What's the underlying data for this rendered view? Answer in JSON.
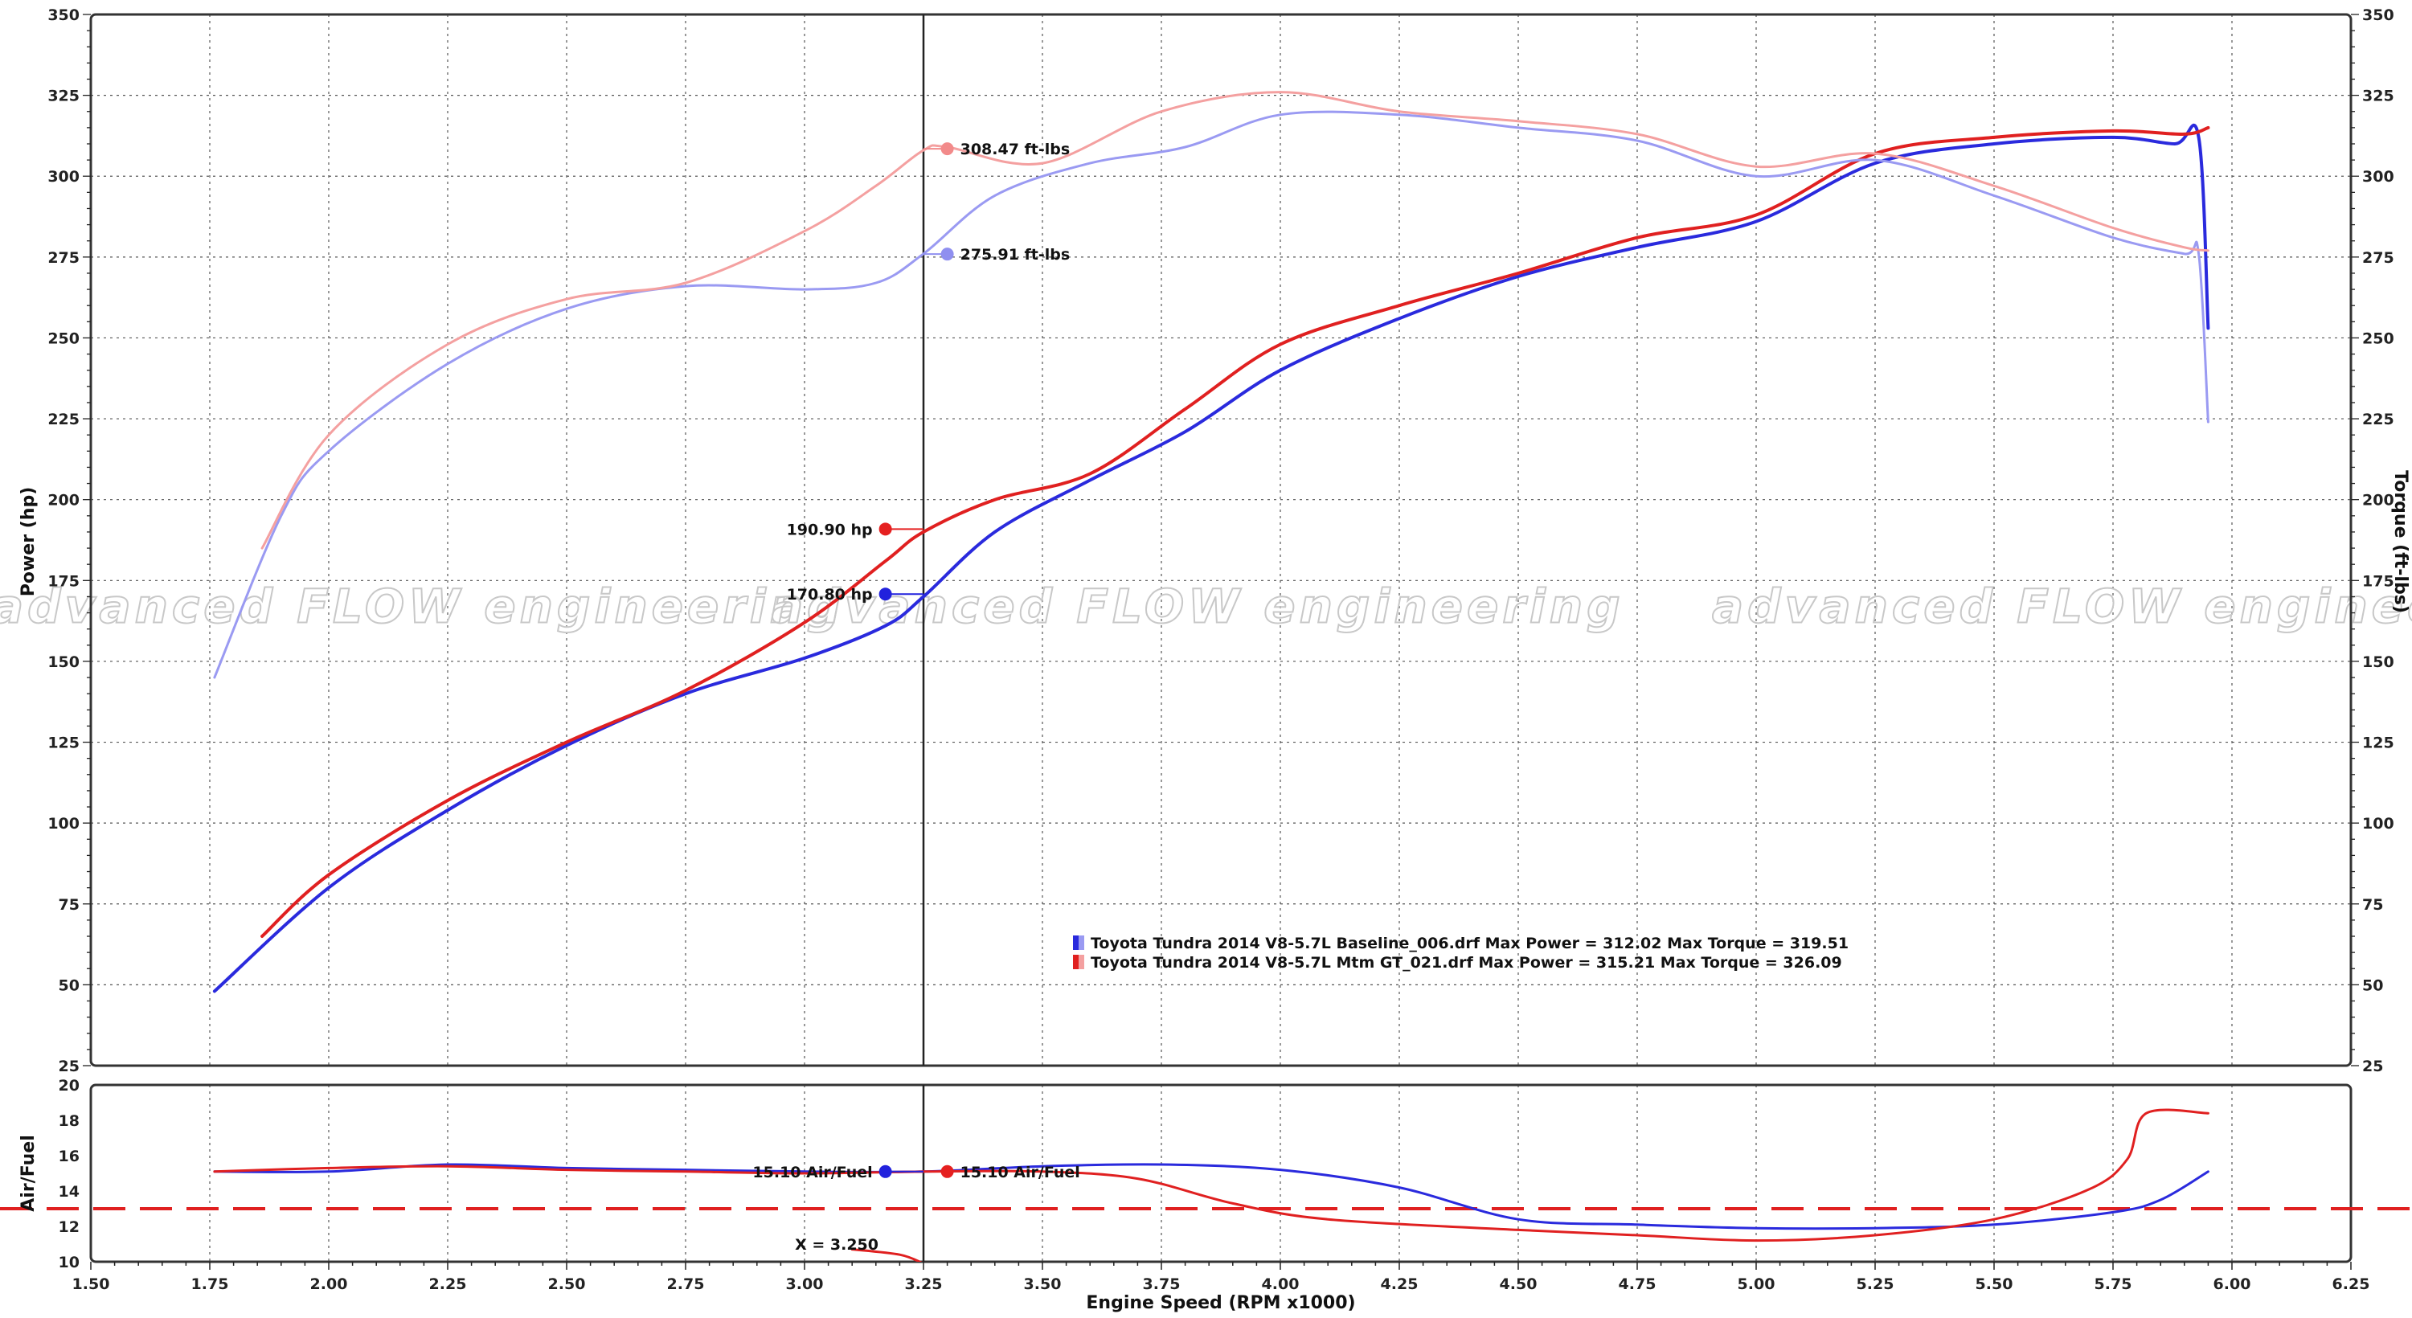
{
  "chart_data": [
    {
      "type": "line",
      "panel": "power-torque",
      "xlabel": "Engine Speed (RPM x1000)",
      "ylabel_left": "Power (hp)",
      "ylabel_right": "Torque (ft-lbs)",
      "xlim": [
        1.5,
        6.25
      ],
      "ylim_left": [
        25,
        350
      ],
      "ylim_right": [
        25,
        350
      ],
      "x_ticks": [
        "1.50",
        "1.75",
        "2.00",
        "2.25",
        "2.50",
        "2.75",
        "3.00",
        "3.25",
        "3.50",
        "3.75",
        "4.00",
        "4.25",
        "4.50",
        "4.75",
        "5.00",
        "5.25",
        "5.50",
        "5.75",
        "6.00",
        "6.25"
      ],
      "y_ticks": [
        "350",
        "325",
        "300",
        "275",
        "250",
        "225",
        "200",
        "175",
        "150",
        "125",
        "100",
        "75",
        "50",
        "25"
      ],
      "grid": true,
      "watermark": "advanced FLOW engineering",
      "cursor": {
        "x": 3.25
      },
      "series": [
        {
          "key": "baseline_power",
          "color": "#2a2add",
          "width": 4,
          "points": [
            [
              1.76,
              48
            ],
            [
              2.0,
              80
            ],
            [
              2.25,
              104
            ],
            [
              2.5,
              124
            ],
            [
              2.75,
              140
            ],
            [
              3.0,
              151
            ],
            [
              3.17,
              161
            ],
            [
              3.25,
              170
            ],
            [
              3.4,
              190
            ],
            [
              3.6,
              206
            ],
            [
              3.8,
              221
            ],
            [
              4.0,
              240
            ],
            [
              4.25,
              256
            ],
            [
              4.5,
              269
            ],
            [
              4.75,
              278
            ],
            [
              5.0,
              286
            ],
            [
              5.25,
              304
            ],
            [
              5.5,
              310
            ],
            [
              5.75,
              312
            ],
            [
              5.88,
              310
            ],
            [
              5.93,
              312
            ],
            [
              5.95,
              253
            ]
          ]
        },
        {
          "key": "mod_power",
          "color": "#e02020",
          "width": 4,
          "points": [
            [
              1.86,
              65
            ],
            [
              2.0,
              84
            ],
            [
              2.25,
              107
            ],
            [
              2.5,
              125
            ],
            [
              2.75,
              141
            ],
            [
              3.0,
              162
            ],
            [
              3.17,
              181
            ],
            [
              3.25,
              190
            ],
            [
              3.4,
              200
            ],
            [
              3.6,
              208
            ],
            [
              3.8,
              228
            ],
            [
              4.0,
              248
            ],
            [
              4.25,
              260
            ],
            [
              4.5,
              270
            ],
            [
              4.75,
              281
            ],
            [
              5.0,
              288
            ],
            [
              5.25,
              307
            ],
            [
              5.5,
              312
            ],
            [
              5.75,
              314
            ],
            [
              5.9,
              313
            ],
            [
              5.95,
              315
            ]
          ]
        },
        {
          "key": "baseline_torque",
          "color": "#9a9af2",
          "width": 3,
          "points": [
            [
              1.76,
              145
            ],
            [
              1.9,
              195
            ],
            [
              2.0,
              215
            ],
            [
              2.25,
              242
            ],
            [
              2.5,
              259
            ],
            [
              2.75,
              266
            ],
            [
              3.0,
              265
            ],
            [
              3.15,
              267
            ],
            [
              3.25,
              276
            ],
            [
              3.4,
              294
            ],
            [
              3.6,
              304
            ],
            [
              3.8,
              309
            ],
            [
              4.0,
              319
            ],
            [
              4.25,
              319
            ],
            [
              4.5,
              315
            ],
            [
              4.75,
              311
            ],
            [
              5.0,
              300
            ],
            [
              5.25,
              305
            ],
            [
              5.5,
              294
            ],
            [
              5.75,
              281
            ],
            [
              5.9,
              276
            ],
            [
              5.93,
              276
            ],
            [
              5.95,
              224
            ]
          ]
        },
        {
          "key": "mod_torque",
          "color": "#f4a0a0",
          "width": 3,
          "points": [
            [
              1.86,
              185
            ],
            [
              2.0,
              220
            ],
            [
              2.25,
              248
            ],
            [
              2.5,
              262
            ],
            [
              2.75,
              267
            ],
            [
              3.0,
              283
            ],
            [
              3.15,
              297
            ],
            [
              3.25,
              308
            ],
            [
              3.3,
              309
            ],
            [
              3.5,
              304
            ],
            [
              3.75,
              320
            ],
            [
              4.0,
              326
            ],
            [
              4.25,
              320
            ],
            [
              4.5,
              317
            ],
            [
              4.75,
              313
            ],
            [
              5.0,
              303
            ],
            [
              5.25,
              307
            ],
            [
              5.5,
              297
            ],
            [
              5.75,
              284
            ],
            [
              5.9,
              278
            ],
            [
              5.95,
              277
            ]
          ]
        }
      ],
      "annotations": [
        {
          "label": "308.47 ft-lbs",
          "x": 3.3,
          "y": 308.47,
          "color": "#f28a8a",
          "side": "right"
        },
        {
          "label": "275.91 ft-lbs",
          "x": 3.3,
          "y": 275.91,
          "color": "#8f8ff0",
          "side": "right"
        },
        {
          "label": "190.90 hp",
          "x": 3.17,
          "y": 190.9,
          "color": "#e52020",
          "side": "left"
        },
        {
          "label": "170.80 hp",
          "x": 3.17,
          "y": 170.8,
          "color": "#2222dd",
          "side": "left"
        }
      ],
      "legend": {
        "placement": "lower-center",
        "entries": [
          {
            "text": "Toyota Tundra 2014 V8-5.7L Baseline_006.drf Max Power = 312.02     Max Torque = 319.51",
            "colors": [
              "#2a2add",
              "#9a9af2"
            ]
          },
          {
            "text": "Toyota Tundra 2014 V8-5.7L Mtm GT_021.drf Max Power = 315.21     Max Torque = 326.09",
            "colors": [
              "#e02020",
              "#f4a0a0"
            ]
          }
        ]
      }
    },
    {
      "type": "line",
      "panel": "air-fuel",
      "xlabel": "Engine Speed (RPM x1000)",
      "ylabel": "Air/Fuel",
      "xlim": [
        1.5,
        6.25
      ],
      "ylim": [
        10,
        20
      ],
      "x_ticks": [
        "1.50",
        "1.75",
        "2.00",
        "2.25",
        "2.50",
        "2.75",
        "3.00",
        "3.25",
        "3.50",
        "3.75",
        "4.00",
        "4.25",
        "4.50",
        "4.75",
        "5.00",
        "5.25",
        "5.50",
        "5.75",
        "6.00",
        "6.25"
      ],
      "y_ticks": [
        "20",
        "18",
        "16",
        "14",
        "12",
        "10"
      ],
      "reference_line": {
        "y": 13,
        "color": "#e02020",
        "style": "dashed"
      },
      "cursor": {
        "x": 3.25
      },
      "series": [
        {
          "key": "baseline_af",
          "color": "#2a2add",
          "width": 3,
          "points": [
            [
              1.76,
              15.1
            ],
            [
              2.0,
              15.1
            ],
            [
              2.25,
              15.5
            ],
            [
              2.5,
              15.3
            ],
            [
              2.75,
              15.2
            ],
            [
              3.0,
              15.1
            ],
            [
              3.25,
              15.1
            ],
            [
              3.5,
              15.4
            ],
            [
              3.75,
              15.5
            ],
            [
              4.0,
              15.2
            ],
            [
              4.25,
              14.2
            ],
            [
              4.5,
              12.4
            ],
            [
              4.75,
              12.1
            ],
            [
              5.0,
              11.9
            ],
            [
              5.25,
              11.9
            ],
            [
              5.5,
              12.1
            ],
            [
              5.75,
              12.8
            ],
            [
              5.85,
              13.5
            ],
            [
              5.95,
              15.1
            ]
          ]
        },
        {
          "key": "mod_af",
          "color": "#e02020",
          "width": 3,
          "points": [
            [
              1.76,
              15.1
            ],
            [
              2.0,
              15.3
            ],
            [
              2.25,
              15.4
            ],
            [
              2.5,
              15.2
            ],
            [
              2.75,
              15.1
            ],
            [
              3.0,
              15.0
            ],
            [
              3.25,
              15.1
            ],
            [
              3.5,
              15.1
            ],
            [
              3.7,
              14.7
            ],
            [
              3.9,
              13.3
            ],
            [
              4.1,
              12.4
            ],
            [
              4.5,
              11.8
            ],
            [
              4.75,
              11.5
            ],
            [
              5.0,
              11.2
            ],
            [
              5.25,
              11.5
            ],
            [
              5.5,
              12.4
            ],
            [
              5.7,
              14.1
            ],
            [
              5.78,
              15.8
            ],
            [
              5.82,
              18.4
            ],
            [
              5.95,
              18.4
            ]
          ]
        },
        {
          "key": "mod_af_pre",
          "color": "#e02020",
          "width": 3,
          "points": [
            [
              3.1,
              10.7
            ],
            [
              3.2,
              10.4
            ],
            [
              3.25,
              9.9
            ]
          ]
        }
      ],
      "annotations": [
        {
          "label": "15.10 Air/Fuel",
          "x": 3.17,
          "y": 15.1,
          "color": "#2222dd",
          "side": "left"
        },
        {
          "label": "15.10 Air/Fuel",
          "x": 3.3,
          "y": 15.1,
          "color": "#e52020",
          "side": "right"
        }
      ],
      "cursor_label": "X = 3.250"
    }
  ]
}
